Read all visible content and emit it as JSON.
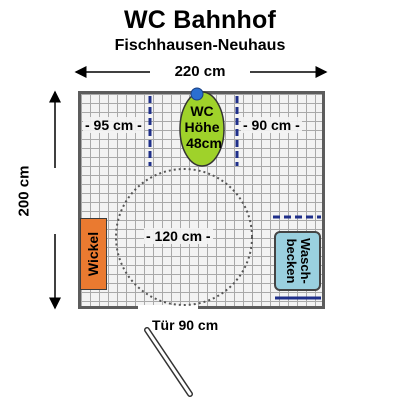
{
  "header": {
    "title": "WC Bahnhof",
    "subtitle": "Fischhausen-Neuhaus"
  },
  "dimensions": {
    "width_label": "220 cm",
    "depth_label": "200 cm",
    "left_clearance": "- 95 cm -",
    "right_clearance": "- 90 cm -",
    "turning_circle": "- 120 cm -",
    "door": "Tür 90 cm"
  },
  "fixtures": {
    "wc_line1": "WC",
    "wc_line2": "Höhe",
    "wc_line3": "48cm",
    "changing_table": "Wickel",
    "basin_line1": "Wasch-",
    "basin_line2": "becken"
  },
  "colors": {
    "wc": "#9fd22a",
    "wc_flush_button": "#2a6fd0",
    "changing_table": "#ea7a30",
    "basin": "#9ad0df",
    "grab_bars": "#1f2f8a",
    "wall": "#5c5c5c"
  }
}
